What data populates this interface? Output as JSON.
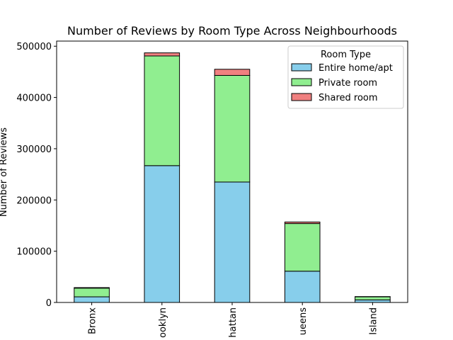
{
  "chart_data": {
    "type": "bar",
    "stacked": true,
    "title": "Number of Reviews by Room Type Across Neighbourhoods",
    "xlabel": "",
    "ylabel": "Number of Reviews",
    "categories": [
      "Bronx",
      "Brooklyn",
      "Manhattan",
      "Queens",
      "Staten Island"
    ],
    "visible_tick_text": [
      "Bronx",
      "ooklyn",
      "hattan",
      "ueens",
      "Island"
    ],
    "ylim": [
      0,
      510000
    ],
    "yticks": [
      0,
      100000,
      200000,
      300000,
      400000,
      500000
    ],
    "grid": false,
    "legend": {
      "title": "Room Type",
      "placement": "top-right"
    },
    "series": [
      {
        "name": "Entire home/apt",
        "color": "#87ceeb",
        "values": [
          11000,
          267000,
          235000,
          61000,
          5000
        ]
      },
      {
        "name": "Private room",
        "color": "#90ee90",
        "values": [
          17000,
          214000,
          208000,
          93000,
          6000
        ]
      },
      {
        "name": "Shared room",
        "color": "#f08080",
        "values": [
          1000,
          6000,
          12000,
          3000,
          500
        ]
      }
    ]
  }
}
